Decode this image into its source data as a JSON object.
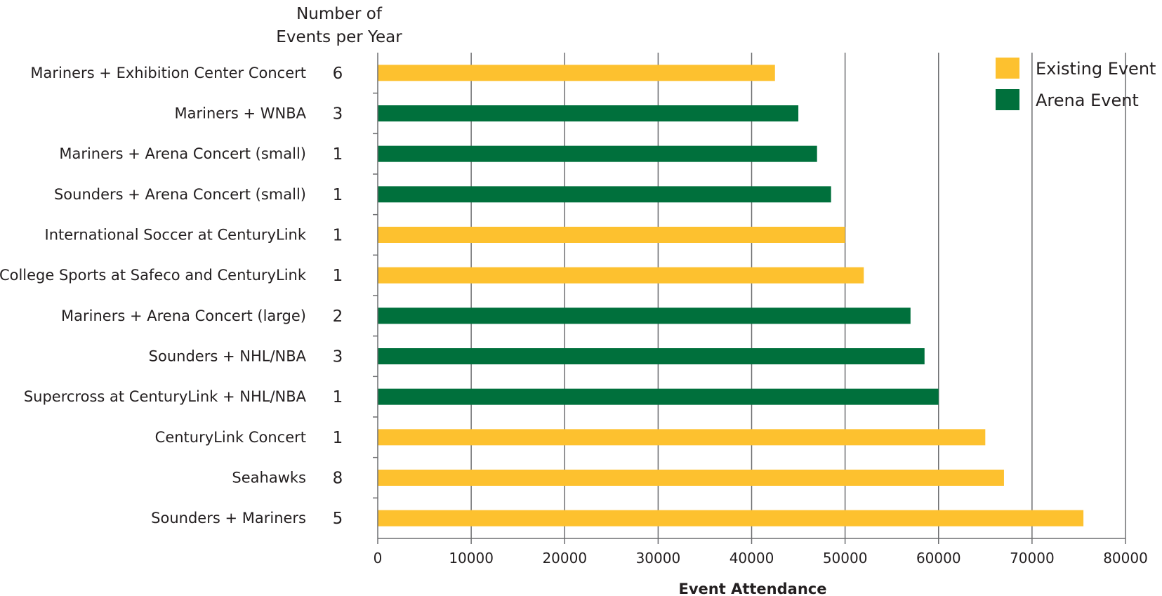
{
  "chart_data": {
    "type": "bar",
    "orientation": "horizontal",
    "count_header": [
      "Number of",
      "Events per Year"
    ],
    "xlabel": "Event Attendance",
    "ylabel": "",
    "xlim": [
      0,
      80000
    ],
    "xticks": [
      "0",
      "10000",
      "20000",
      "30000",
      "40000",
      "50000",
      "60000",
      "70000",
      "80000"
    ],
    "grid": "vertical",
    "legend_position": "top-right",
    "legend": [
      {
        "name": "Existing Event",
        "color": "#FDC12F"
      },
      {
        "name": "Arena Event",
        "color": "#00703C"
      }
    ],
    "bars": [
      {
        "label": "Mariners + Exhibition Center Concert",
        "count": "6",
        "value": 42500,
        "type": "Existing Event"
      },
      {
        "label": "Mariners + WNBA",
        "count": "3",
        "value": 45000,
        "type": "Arena Event"
      },
      {
        "label": "Mariners + Arena Concert (small)",
        "count": "1",
        "value": 47000,
        "type": "Arena Event"
      },
      {
        "label": "Sounders + Arena Concert (small)",
        "count": "1",
        "value": 48500,
        "type": "Arena Event"
      },
      {
        "label": "International Soccer at CenturyLink",
        "count": "1",
        "value": 50000,
        "type": "Existing Event"
      },
      {
        "label": "College Sports at Safeco and CenturyLink",
        "count": "1",
        "value": 52000,
        "type": "Existing Event"
      },
      {
        "label": "Mariners + Arena Concert (large)",
        "count": "2",
        "value": 57000,
        "type": "Arena Event"
      },
      {
        "label": "Sounders + NHL/NBA",
        "count": "3",
        "value": 58500,
        "type": "Arena Event"
      },
      {
        "label": "Supercross at CenturyLink + NHL/NBA",
        "count": "1",
        "value": 60000,
        "type": "Arena Event"
      },
      {
        "label": "CenturyLink Concert",
        "count": "1",
        "value": 65000,
        "type": "Existing Event"
      },
      {
        "label": "Seahawks",
        "count": "8",
        "value": 67000,
        "type": "Existing Event"
      },
      {
        "label": "Sounders + Mariners",
        "count": "5",
        "value": 75500,
        "type": "Existing Event"
      }
    ]
  }
}
